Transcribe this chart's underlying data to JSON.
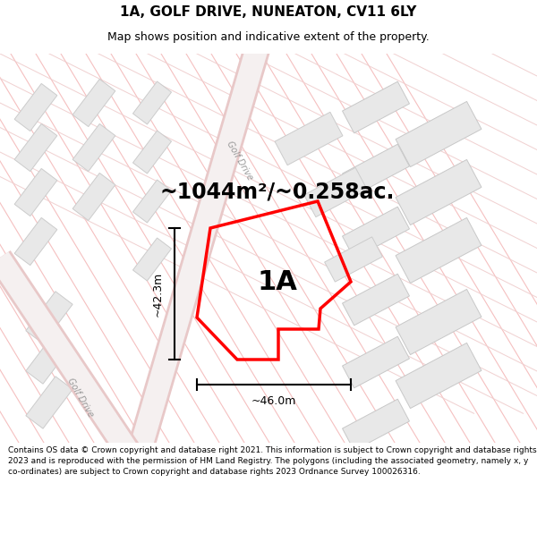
{
  "title": "1A, GOLF DRIVE, NUNEATON, CV11 6LY",
  "subtitle": "Map shows position and indicative extent of the property.",
  "area_label": "~1044m²/~0.258ac.",
  "plot_label": "1A",
  "dim_width": "~46.0m",
  "dim_height": "~42.3m",
  "footer": "Contains OS data © Crown copyright and database right 2021. This information is subject to Crown copyright and database rights 2023 and is reproduced with the permission of HM Land Registry. The polygons (including the associated geometry, namely x, y co-ordinates) are subject to Crown copyright and database rights 2023 Ordnance Survey 100026316.",
  "bg_color": "#ffffff",
  "map_bg": "#ffffff",
  "road_color": "#f5c0c0",
  "road_color_light": "#f0d0d0",
  "block_face": "#e8e8e8",
  "block_edge": "#c8c8c8",
  "plot_color": "#ff0000",
  "street_label": "Golf Drive",
  "street_label2": "Golf Drive",
  "title_fontsize": 11,
  "subtitle_fontsize": 9,
  "area_fontsize": 17,
  "footer_fontsize": 6.5,
  "dim_fontsize": 9,
  "label_fontsize": 22
}
